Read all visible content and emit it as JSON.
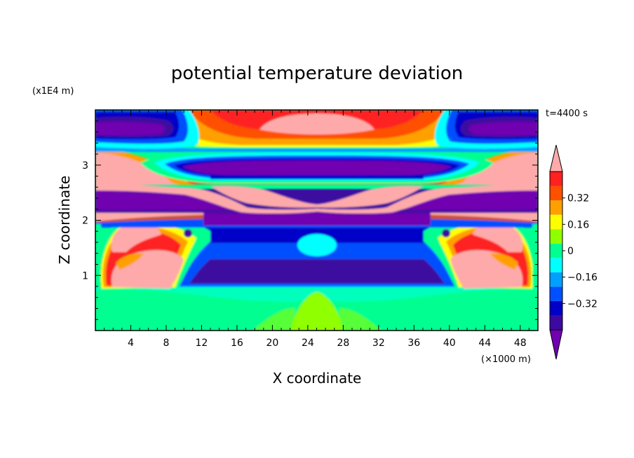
{
  "chart_data": {
    "type": "heatmap",
    "title": "potential temperature deviation",
    "xlabel": "X coordinate",
    "ylabel": "Z coordinate",
    "x_unit": "(×1000 m)",
    "y_unit": "(x1E4 m)",
    "time_label": "t=4400 s",
    "xlim": [
      0,
      50
    ],
    "ylim": [
      0,
      4
    ],
    "x_ticks": [
      4,
      8,
      12,
      16,
      20,
      24,
      28,
      32,
      36,
      40,
      44,
      48
    ],
    "y_ticks": [
      1,
      2,
      3
    ],
    "colorbar": {
      "levels": [
        -0.48,
        -0.4,
        -0.32,
        -0.24,
        -0.16,
        -0.08,
        0,
        0.08,
        0.16,
        0.24,
        0.32,
        0.4
      ],
      "labels": [
        "0.32",
        "0.16",
        "0",
        "−0.16",
        "−0.32"
      ],
      "label_values": [
        0.32,
        0.16,
        0,
        -0.16,
        -0.32
      ],
      "colors": [
        "#7000b0",
        "#3c0aa0",
        "#0000c8",
        "#0050ff",
        "#00a0ff",
        "#00ffff",
        "#00ff90",
        "#90ff00",
        "#ffff00",
        "#ffa000",
        "#ff5000",
        "#ff2020",
        "#ffaaaa"
      ]
    },
    "field_regions": [
      {
        "name": "lower-background",
        "x": [
          0,
          50
        ],
        "z": [
          0,
          0.85
        ],
        "value": 0.02
      },
      {
        "name": "ground-plume",
        "x": [
          22,
          28
        ],
        "z": [
          0,
          0.6
        ],
        "value": 0.1
      },
      {
        "name": "central-cold-core",
        "x": [
          10,
          40
        ],
        "z": [
          0.75,
          1.95
        ],
        "value": -0.36
      },
      {
        "name": "cyan-pocket",
        "x": [
          22.5,
          27.5
        ],
        "z": [
          1.35,
          1.7
        ],
        "value": -0.04
      },
      {
        "name": "left-warm-rotor",
        "x": [
          1.5,
          12.5
        ],
        "z": [
          0.75,
          1.4
        ],
        "value": 0.42
      },
      {
        "name": "right-warm-rotor",
        "x": [
          37.5,
          48.5
        ],
        "z": [
          0.75,
          1.4
        ],
        "value": 0.42
      },
      {
        "name": "left-upper-warm",
        "x": [
          0.5,
          15
        ],
        "z": [
          1.4,
          2.0
        ],
        "value": 0.42
      },
      {
        "name": "right-upper-warm",
        "x": [
          35,
          49.5
        ],
        "z": [
          1.4,
          2.0
        ],
        "value": 0.42
      },
      {
        "name": "mid-cold-band",
        "x": [
          0,
          50
        ],
        "z": [
          2.05,
          2.45
        ],
        "value": -0.48
      },
      {
        "name": "warm-filament",
        "x": [
          0,
          50
        ],
        "z": [
          2.2,
          2.65
        ],
        "value": 0.42
      },
      {
        "name": "upper-cold-band",
        "x": [
          8,
          42
        ],
        "z": [
          2.75,
          3.1
        ],
        "value": -0.48
      },
      {
        "name": "top-warm-cap",
        "x": [
          14,
          36
        ],
        "z": [
          3.3,
          3.9
        ],
        "value": 0.42
      },
      {
        "name": "top-corner-cold",
        "x": [
          0,
          12
        ],
        "z": [
          3.4,
          3.85
        ],
        "value": -0.48
      },
      {
        "name": "top-corner-cold-right",
        "x": [
          38,
          50
        ],
        "z": [
          3.4,
          3.85
        ],
        "value": -0.48
      }
    ]
  }
}
